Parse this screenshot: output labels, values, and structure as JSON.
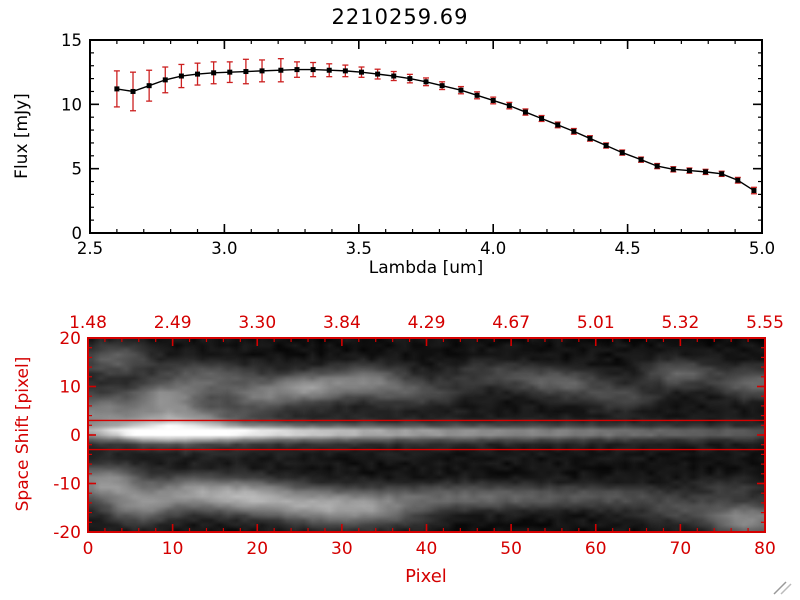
{
  "title": "2210259.69",
  "colors": {
    "axis_black": "#000000",
    "axis_red": "#d40000",
    "errorbar_red": "#cc2020",
    "background": "#ffffff"
  },
  "spectrum": {
    "ylabel": "Flux [mJy]",
    "xlabel": "Lambda [um]"
  },
  "image": {
    "ylabel": "Space Shift [pixel]",
    "xlabel": "Pixel"
  },
  "chart_data": [
    {
      "type": "line",
      "title": "2210259.69",
      "xlabel": "Lambda [um]",
      "ylabel": "Flux [mJy]",
      "xlim": [
        2.5,
        5.0
      ],
      "ylim": [
        0,
        15
      ],
      "xticks": {
        "major": [
          2.5,
          3.0,
          3.5,
          4.0,
          4.5,
          5.0
        ],
        "labels": [
          "2.5",
          "3.0",
          "3.5",
          "4.0",
          "4.5",
          "5.0"
        ],
        "minor_step": 0.1
      },
      "yticks": {
        "major": [
          0,
          5,
          10,
          15
        ],
        "labels": [
          "0",
          "5",
          "10",
          "15"
        ],
        "minor_step": 1
      },
      "marker": "square",
      "line_color": "#000000",
      "marker_color": "#000000",
      "error_color": "#cc2020",
      "x": [
        2.6,
        2.66,
        2.72,
        2.78,
        2.84,
        2.9,
        2.96,
        3.02,
        3.08,
        3.14,
        3.21,
        3.27,
        3.33,
        3.39,
        3.45,
        3.51,
        3.57,
        3.63,
        3.69,
        3.75,
        3.81,
        3.88,
        3.94,
        4.0,
        4.06,
        4.12,
        4.18,
        4.24,
        4.3,
        4.36,
        4.42,
        4.48,
        4.55,
        4.61,
        4.67,
        4.73,
        4.79,
        4.85,
        4.91,
        4.97
      ],
      "y": [
        11.2,
        11.0,
        11.45,
        11.9,
        12.2,
        12.35,
        12.45,
        12.5,
        12.55,
        12.6,
        12.65,
        12.7,
        12.7,
        12.65,
        12.6,
        12.5,
        12.35,
        12.2,
        12.0,
        11.75,
        11.45,
        11.1,
        10.7,
        10.3,
        9.9,
        9.4,
        8.9,
        8.4,
        7.9,
        7.35,
        6.8,
        6.25,
        5.7,
        5.2,
        4.95,
        4.85,
        4.75,
        4.6,
        4.1,
        3.3
      ],
      "yerr": [
        1.4,
        1.5,
        1.2,
        1.0,
        0.9,
        0.85,
        0.85,
        0.8,
        0.95,
        0.85,
        0.9,
        0.6,
        0.55,
        0.5,
        0.45,
        0.4,
        0.38,
        0.35,
        0.33,
        0.3,
        0.3,
        0.28,
        0.27,
        0.26,
        0.25,
        0.24,
        0.23,
        0.22,
        0.22,
        0.21,
        0.2,
        0.2,
        0.2,
        0.2,
        0.2,
        0.2,
        0.2,
        0.2,
        0.22,
        0.25
      ]
    },
    {
      "type": "heatmap",
      "xlabel": "Pixel",
      "ylabel": "Space Shift [pixel]",
      "xlim": [
        0,
        80
      ],
      "ylim": [
        -20,
        20
      ],
      "axis_color": "#d40000",
      "xticks": {
        "major": [
          0,
          10,
          20,
          30,
          40,
          50,
          60,
          70,
          80
        ],
        "labels": [
          "0",
          "10",
          "20",
          "30",
          "40",
          "50",
          "60",
          "70",
          "80"
        ],
        "minor_step": 2
      },
      "yticks": {
        "major": [
          -20,
          -10,
          0,
          10,
          20
        ],
        "labels": [
          "-20",
          "-10",
          "0",
          "10",
          "20"
        ],
        "minor_step": 2
      },
      "top_axis": {
        "positions": [
          0,
          10,
          20,
          30,
          40,
          50,
          60,
          70,
          80
        ],
        "labels": [
          "1.48",
          "2.49",
          "3.30",
          "3.84",
          "4.29",
          "4.67",
          "5.01",
          "5.32",
          "5.55"
        ]
      },
      "aperture_lines_y": [
        3,
        -3
      ],
      "features": {
        "background": 0.05,
        "noise": 0.04,
        "gamma": 0.9,
        "trace": {
          "y0": 0.5,
          "sigma": 1.0,
          "halo_sigma": 3.0,
          "halo_frac": 0.2,
          "profile": [
            [
              0,
              0.35
            ],
            [
              4,
              0.6
            ],
            [
              7,
              0.95
            ],
            [
              9,
              1.0
            ],
            [
              12,
              0.97
            ],
            [
              15,
              0.9
            ],
            [
              18,
              0.8
            ],
            [
              22,
              0.72
            ],
            [
              28,
              0.62
            ],
            [
              34,
              0.54
            ],
            [
              40,
              0.48
            ],
            [
              48,
              0.43
            ],
            [
              56,
              0.37
            ],
            [
              64,
              0.31
            ],
            [
              72,
              0.26
            ],
            [
              80,
              0.22
            ]
          ]
        },
        "blobs": [
          [
            1,
            5,
            2.5,
            3,
            0.35
          ],
          [
            10,
            3,
            5,
            2.5,
            0.45
          ],
          [
            9,
            8,
            3,
            2,
            0.4
          ],
          [
            3,
            16,
            3,
            2.5,
            0.3
          ],
          [
            14,
            12,
            4,
            2.5,
            0.3
          ],
          [
            20,
            8,
            2.5,
            2,
            0.28
          ],
          [
            26,
            10,
            3.5,
            2.2,
            0.5
          ],
          [
            33,
            12,
            3,
            2,
            0.35
          ],
          [
            38,
            9,
            4,
            2,
            0.25
          ],
          [
            48,
            13,
            4,
            2,
            0.18
          ],
          [
            56,
            11,
            3.5,
            2,
            0.3
          ],
          [
            63,
            8,
            3,
            1.8,
            0.2
          ],
          [
            70,
            13,
            3,
            2,
            0.3
          ],
          [
            79,
            11,
            3,
            2.2,
            0.35
          ],
          [
            2,
            -10,
            3,
            2.5,
            0.5
          ],
          [
            6,
            -15,
            3,
            2.5,
            0.4
          ],
          [
            12,
            -12,
            3.5,
            2.5,
            0.4
          ],
          [
            19,
            -13,
            4,
            2.5,
            0.55
          ],
          [
            27,
            -15,
            4,
            2.5,
            0.45
          ],
          [
            34,
            -16,
            4,
            2.5,
            0.35
          ],
          [
            42,
            -13,
            8,
            2,
            0.22
          ],
          [
            52,
            -13,
            8,
            1.8,
            0.18
          ],
          [
            63,
            -13,
            5,
            1.8,
            0.15
          ],
          [
            71,
            -16,
            4,
            2,
            0.2
          ],
          [
            78,
            -18,
            3,
            2.5,
            0.45
          ],
          [
            76,
            -11,
            3,
            1.5,
            0.15
          ]
        ]
      }
    }
  ]
}
